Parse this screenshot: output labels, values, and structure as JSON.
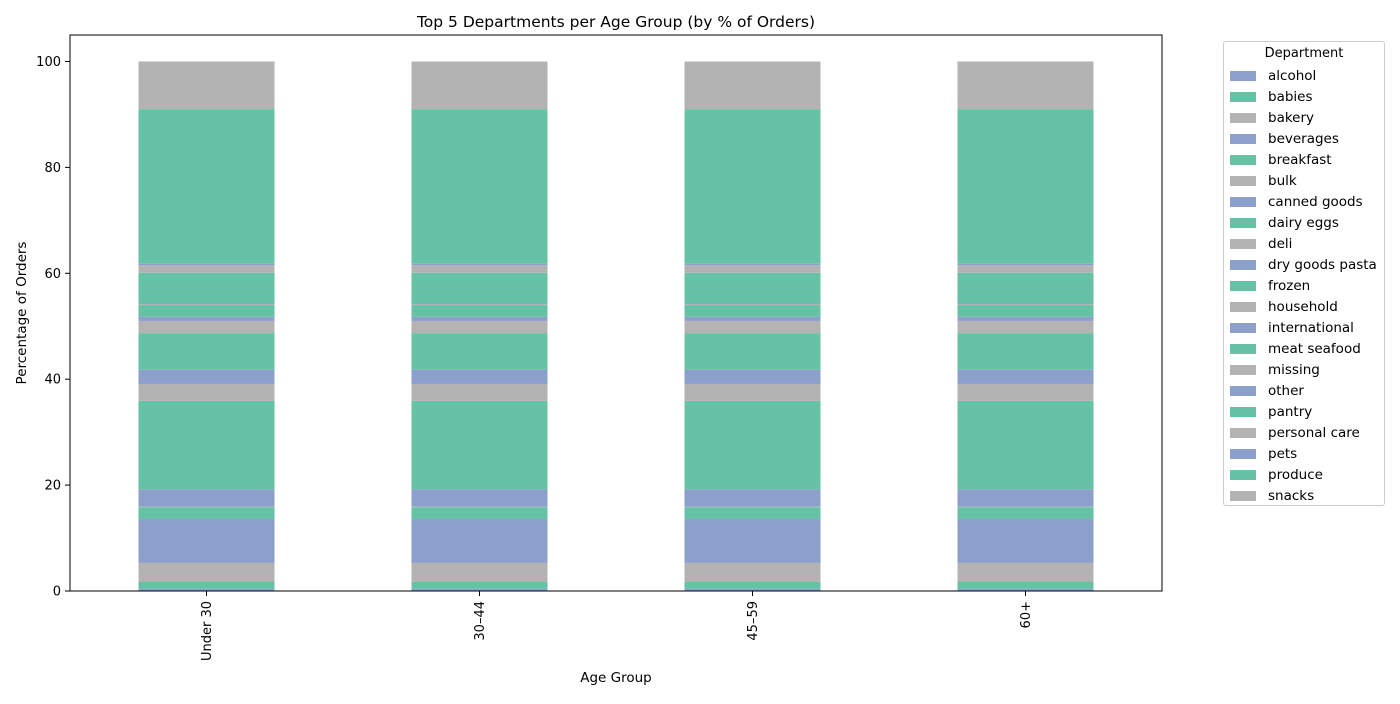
{
  "chart_data": {
    "type": "bar",
    "stacked": true,
    "title": "Top 5 Departments per Age Group (by % of Orders)",
    "xlabel": "Age Group",
    "ylabel": "Percentage of Orders",
    "ylim": [
      0,
      105
    ],
    "yticks": [
      0,
      20,
      40,
      60,
      80,
      100
    ],
    "categories": [
      "Under 30",
      "30–44",
      "45–59",
      "60+"
    ],
    "legend_title": "Department",
    "legend_placement": "outside-right",
    "grid": false,
    "colors": [
      "#8da0cb",
      "#66c2a5",
      "#b3b3b3"
    ],
    "series": [
      {
        "name": "alcohol",
        "values": [
          0.4,
          0.4,
          0.4,
          0.4
        ]
      },
      {
        "name": "babies",
        "values": [
          1.3,
          1.3,
          1.3,
          1.3
        ]
      },
      {
        "name": "bakery",
        "values": [
          3.6,
          3.6,
          3.6,
          3.6
        ]
      },
      {
        "name": "beverages",
        "values": [
          8.3,
          8.3,
          8.3,
          8.3
        ]
      },
      {
        "name": "breakfast",
        "values": [
          2.2,
          2.2,
          2.2,
          2.2
        ]
      },
      {
        "name": "bulk",
        "values": [
          0.1,
          0.1,
          0.1,
          0.1
        ]
      },
      {
        "name": "canned goods",
        "values": [
          3.3,
          3.3,
          3.3,
          3.3
        ]
      },
      {
        "name": "dairy eggs",
        "values": [
          16.7,
          16.7,
          16.7,
          16.7
        ]
      },
      {
        "name": "deli",
        "values": [
          3.2,
          3.2,
          3.2,
          3.2
        ]
      },
      {
        "name": "dry goods pasta",
        "values": [
          2.7,
          2.7,
          2.7,
          2.7
        ]
      },
      {
        "name": "frozen",
        "values": [
          6.9,
          6.9,
          6.9,
          6.9
        ]
      },
      {
        "name": "household",
        "values": [
          2.3,
          2.3,
          2.3,
          2.3
        ]
      },
      {
        "name": "international",
        "values": [
          0.8,
          0.8,
          0.8,
          0.8
        ]
      },
      {
        "name": "meat seafood",
        "values": [
          2.2,
          2.2,
          2.2,
          2.2
        ]
      },
      {
        "name": "missing",
        "values": [
          0.2,
          0.2,
          0.2,
          0.2
        ]
      },
      {
        "name": "other",
        "values": [
          0.1,
          0.1,
          0.1,
          0.1
        ]
      },
      {
        "name": "pantry",
        "values": [
          5.8,
          5.8,
          5.8,
          5.8
        ]
      },
      {
        "name": "personal care",
        "values": [
          1.4,
          1.4,
          1.4,
          1.4
        ]
      },
      {
        "name": "pets",
        "values": [
          0.3,
          0.3,
          0.3,
          0.3
        ]
      },
      {
        "name": "produce",
        "values": [
          29.2,
          29.2,
          29.2,
          29.2
        ]
      },
      {
        "name": "snacks",
        "values": [
          9.0,
          9.0,
          9.0,
          9.0
        ]
      }
    ]
  }
}
